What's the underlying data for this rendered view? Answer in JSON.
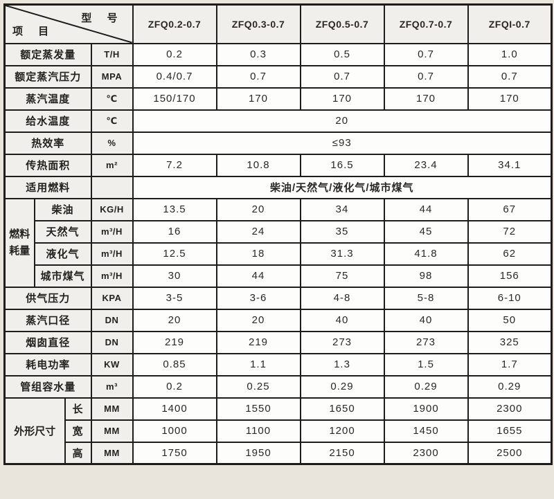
{
  "colors": {
    "page_bg": "#e9e5dc",
    "grid": "#1e1c1a",
    "label_bg": "#f1efec",
    "cell_bg": "#fdfdfc",
    "text": "#24221f"
  },
  "header": {
    "corner_top_right": "型 号",
    "corner_bottom_left": "项 目",
    "models": [
      "ZFQ0.2-0.7",
      "ZFQ0.3-0.7",
      "ZFQ0.5-0.7",
      "ZFQ0.7-0.7",
      "ZFQI-0.7"
    ]
  },
  "rows": [
    {
      "label": "额定蒸发量",
      "label_colspan": 3,
      "unit": "T/H",
      "values": [
        "0.2",
        "0.3",
        "0.5",
        "0.7",
        "1.0"
      ]
    },
    {
      "label": "额定蒸汽压力",
      "label_colspan": 3,
      "unit": "MPA",
      "values": [
        "0.4/0.7",
        "0.7",
        "0.7",
        "0.7",
        "0.7"
      ]
    },
    {
      "label": "蒸汽温度",
      "label_colspan": 3,
      "unit": "℃",
      "values": [
        "150/170",
        "170",
        "170",
        "170",
        "170"
      ]
    },
    {
      "label": "给水温度",
      "label_colspan": 3,
      "unit": "℃",
      "merged": "20"
    },
    {
      "label": "热效率",
      "label_colspan": 3,
      "unit": "%",
      "merged": "≤93"
    },
    {
      "label": "传热面积",
      "label_colspan": 3,
      "unit": "m²",
      "values": [
        "7.2",
        "10.8",
        "16.5",
        "23.4",
        "34.1"
      ]
    },
    {
      "label": "适用燃料",
      "label_colspan": 3,
      "unit": "",
      "merged": "柴油/天然气/液化气/城市煤气",
      "merged_bold": true
    },
    {
      "group": {
        "label": "燃料耗量",
        "colspan": 1,
        "rowspan": 4,
        "vertical": true
      },
      "label": "柴油",
      "label_colspan": 2,
      "unit": "KG/H",
      "values": [
        "13.5",
        "20",
        "34",
        "44",
        "67"
      ]
    },
    {
      "label": "天然气",
      "label_colspan": 2,
      "unit": "m³/H",
      "values": [
        "16",
        "24",
        "35",
        "45",
        "72"
      ]
    },
    {
      "label": "液化气",
      "label_colspan": 2,
      "unit": "m³/H",
      "values": [
        "12.5",
        "18",
        "31.3",
        "41.8",
        "62"
      ]
    },
    {
      "label": "城市煤气",
      "label_colspan": 2,
      "unit": "m³/H",
      "values": [
        "30",
        "44",
        "75",
        "98",
        "156"
      ]
    },
    {
      "label": "供气压力",
      "label_colspan": 3,
      "unit": "KPA",
      "values": [
        "3-5",
        "3-6",
        "4-8",
        "5-8",
        "6-10"
      ]
    },
    {
      "label": "蒸汽口径",
      "label_colspan": 3,
      "unit": "DN",
      "values": [
        "20",
        "20",
        "40",
        "40",
        "50"
      ]
    },
    {
      "label": "烟囱直径",
      "label_colspan": 3,
      "unit": "DN",
      "values": [
        "219",
        "219",
        "273",
        "273",
        "325"
      ]
    },
    {
      "label": "耗电功率",
      "label_colspan": 3,
      "unit": "KW",
      "values": [
        "0.85",
        "1.1",
        "1.3",
        "1.5",
        "1.7"
      ]
    },
    {
      "label": "管组容水量",
      "label_colspan": 3,
      "unit": "m³",
      "values": [
        "0.2",
        "0.25",
        "0.29",
        "0.29",
        "0.29"
      ]
    },
    {
      "group": {
        "label": "外形尺寸",
        "colspan": 2,
        "rowspan": 3,
        "vertical": false
      },
      "label": "长",
      "label_colspan": 1,
      "unit": "MM",
      "values": [
        "1400",
        "1550",
        "1650",
        "1900",
        "2300"
      ]
    },
    {
      "label": "宽",
      "label_colspan": 1,
      "unit": "MM",
      "values": [
        "1000",
        "1100",
        "1200",
        "1450",
        "1655"
      ]
    },
    {
      "label": "高",
      "label_colspan": 1,
      "unit": "MM",
      "values": [
        "1750",
        "1950",
        "2150",
        "2300",
        "2500"
      ]
    }
  ]
}
